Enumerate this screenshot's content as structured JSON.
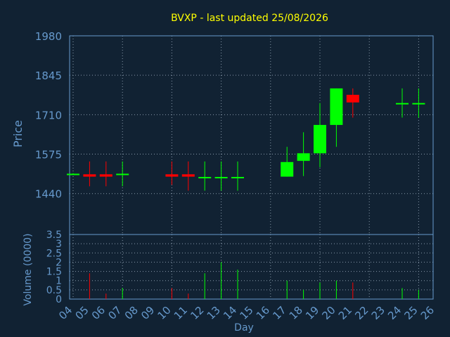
{
  "title": "BVXP - last updated 25/08/2026",
  "colors": {
    "background": "#112233",
    "text": "#6699cc",
    "title": "#ffff00",
    "grid": "#8899aa",
    "frame": "#6699cc",
    "up": "#00ff00",
    "down": "#ff0000"
  },
  "chart_data": [
    {
      "type": "candlestick",
      "ylabel": "Price",
      "yticks": [
        "1980",
        "1845",
        "1710",
        "1575",
        "1440"
      ],
      "ylim": [
        1300,
        1980
      ],
      "grid": true,
      "days": [
        "04",
        "05",
        "06",
        "07",
        "08",
        "09",
        "10",
        "11",
        "12",
        "13",
        "14",
        "15",
        "16",
        "17",
        "18",
        "19",
        "20",
        "21",
        "22",
        "23",
        "24",
        "25",
        "26"
      ],
      "candles": [
        {
          "day": "04",
          "open": 1508,
          "high": 1510,
          "low": 1506,
          "close": 1508
        },
        {
          "day": "05",
          "open": 1506,
          "high": 1550,
          "low": 1465,
          "close": 1498
        },
        {
          "day": "06",
          "open": 1506,
          "high": 1550,
          "low": 1465,
          "close": 1498
        },
        {
          "day": "07",
          "open": 1504,
          "high": 1550,
          "low": 1465,
          "close": 1508
        },
        {
          "day": "10",
          "open": 1506,
          "high": 1550,
          "low": 1470,
          "close": 1498
        },
        {
          "day": "11",
          "open": 1506,
          "high": 1550,
          "low": 1450,
          "close": 1498
        },
        {
          "day": "12",
          "open": 1495,
          "high": 1550,
          "low": 1450,
          "close": 1497
        },
        {
          "day": "13",
          "open": 1495,
          "high": 1550,
          "low": 1450,
          "close": 1497
        },
        {
          "day": "14",
          "open": 1495,
          "high": 1550,
          "low": 1450,
          "close": 1497
        },
        {
          "day": "17",
          "open": 1498,
          "high": 1600,
          "low": 1498,
          "close": 1548
        },
        {
          "day": "18",
          "open": 1552,
          "high": 1650,
          "low": 1500,
          "close": 1578
        },
        {
          "day": "19",
          "open": 1578,
          "high": 1750,
          "low": 1530,
          "close": 1675
        },
        {
          "day": "20",
          "open": 1675,
          "high": 1800,
          "low": 1600,
          "close": 1800
        },
        {
          "day": "21",
          "open": 1778,
          "high": 1800,
          "low": 1700,
          "close": 1752
        },
        {
          "day": "24",
          "open": 1748,
          "high": 1800,
          "low": 1700,
          "close": 1750
        },
        {
          "day": "25",
          "open": 1748,
          "high": 1800,
          "low": 1700,
          "close": 1750
        }
      ]
    },
    {
      "type": "bar",
      "ylabel": "Volume (0000)",
      "xlabel": "Day",
      "yticks": [
        "3.5",
        "3",
        "2.5",
        "2",
        "1.5",
        "1",
        "0.5",
        "0"
      ],
      "ylim": [
        0,
        3.5
      ],
      "grid": true,
      "bars": [
        {
          "day": "05",
          "value": 1.4,
          "color": "down"
        },
        {
          "day": "06",
          "value": 0.3,
          "color": "down"
        },
        {
          "day": "07",
          "value": 0.6,
          "color": "up"
        },
        {
          "day": "10",
          "value": 0.6,
          "color": "down"
        },
        {
          "day": "11",
          "value": 0.3,
          "color": "down"
        },
        {
          "day": "12",
          "value": 1.4,
          "color": "up"
        },
        {
          "day": "13",
          "value": 2.0,
          "color": "up"
        },
        {
          "day": "14",
          "value": 1.6,
          "color": "up"
        },
        {
          "day": "17",
          "value": 1.0,
          "color": "up"
        },
        {
          "day": "18",
          "value": 0.5,
          "color": "up"
        },
        {
          "day": "19",
          "value": 0.9,
          "color": "up"
        },
        {
          "day": "20",
          "value": 1.0,
          "color": "up"
        },
        {
          "day": "21",
          "value": 0.9,
          "color": "down"
        },
        {
          "day": "24",
          "value": 0.6,
          "color": "up"
        },
        {
          "day": "25",
          "value": 0.5,
          "color": "up"
        }
      ]
    }
  ]
}
